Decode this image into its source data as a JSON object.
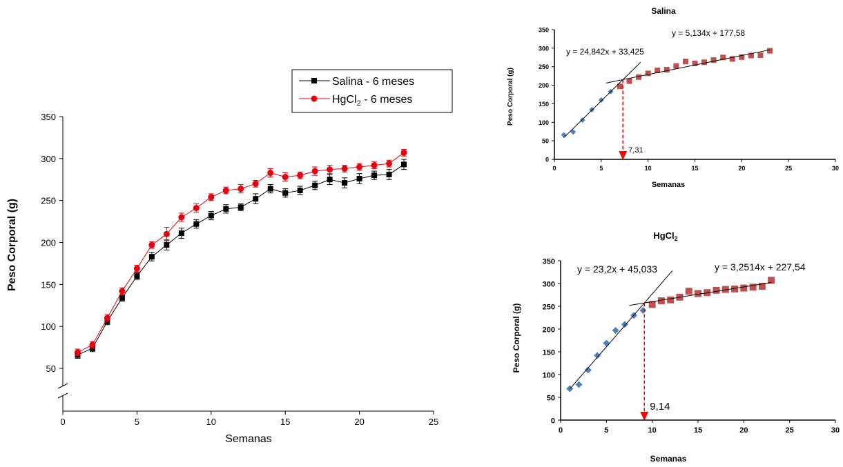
{
  "chart_data": [
    {
      "type": "line",
      "ylabel": "Peso Corporal (g)",
      "xlabel": "Semanas",
      "xlim": [
        0,
        25
      ],
      "ylim": [
        50,
        350
      ],
      "x_ticks": [
        0,
        5,
        10,
        15,
        20,
        25
      ],
      "y_ticks": [
        50,
        100,
        150,
        200,
        250,
        300,
        350
      ],
      "legend": {
        "placement": "top-right"
      },
      "axis_break": true,
      "x": [
        1,
        2,
        3,
        4,
        5,
        6,
        7,
        8,
        9,
        10,
        11,
        12,
        13,
        14,
        15,
        16,
        17,
        18,
        19,
        20,
        21,
        22,
        23
      ],
      "series": [
        {
          "name": "Salina - 6 meses",
          "legend_parts": [
            "Salina - 6 meses"
          ],
          "color": "#000000",
          "marker": "square",
          "values": [
            66,
            74,
            106,
            134,
            160,
            183,
            197,
            211,
            222,
            232,
            240,
            242,
            252,
            264,
            259,
            262,
            268,
            275,
            271,
            276,
            280,
            281,
            293
          ],
          "error": [
            4,
            4,
            4,
            4,
            4,
            5,
            6,
            6,
            5,
            5,
            5,
            4,
            6,
            5,
            5,
            5,
            5,
            6,
            6,
            6,
            5,
            6,
            6
          ]
        },
        {
          "name": "HgCl2 - 6 meses",
          "legend_parts": [
            "HgCl",
            "2",
            " - 6 meses"
          ],
          "color": "#e8000b",
          "marker": "circle",
          "values": [
            69,
            78,
            110,
            142,
            169,
            197,
            210,
            230,
            241,
            254,
            262,
            264,
            270,
            283,
            278,
            280,
            285,
            287,
            288,
            290,
            292,
            294,
            307
          ],
          "error": [
            4,
            4,
            4,
            4,
            4,
            4,
            8,
            5,
            5,
            4,
            4,
            5,
            4,
            5,
            5,
            4,
            5,
            5,
            4,
            4,
            4,
            4,
            4
          ]
        }
      ]
    },
    {
      "type": "scatter",
      "title": "Salina",
      "xlabel": "Semanas",
      "ylabel": "Peso Corporal (g)",
      "xlim": [
        0,
        30
      ],
      "ylim": [
        0,
        350
      ],
      "x_ticks": [
        0,
        5,
        10,
        15,
        20,
        25,
        30
      ],
      "y_ticks": [
        0,
        50,
        100,
        150,
        200,
        250,
        300,
        350
      ],
      "series": [
        {
          "marker": "diamond",
          "color": "#4f81bd",
          "x": [
            1,
            2,
            3,
            4,
            5,
            6
          ],
          "values": [
            66,
            74,
            106,
            134,
            160,
            183
          ]
        },
        {
          "marker": "square",
          "color": "#c0504d",
          "x": [
            7,
            8,
            9,
            10,
            11,
            12,
            13,
            14,
            15,
            16,
            17,
            18,
            19,
            20,
            21,
            22,
            23
          ],
          "values": [
            197,
            211,
            222,
            232,
            240,
            242,
            252,
            264,
            259,
            262,
            268,
            275,
            271,
            276,
            280,
            281,
            293
          ]
        }
      ],
      "trendlines": [
        {
          "equation": "y = 24,842x + 33,425",
          "slope": 24.842,
          "intercept": 33.425,
          "x_range": [
            1,
            9.2
          ]
        },
        {
          "equation": "y = 5,134x + 177,58",
          "slope": 5.134,
          "intercept": 177.58,
          "x_range": [
            5.5,
            23
          ]
        }
      ],
      "annotation": {
        "label": "7,31",
        "x": 7.31
      }
    },
    {
      "type": "scatter",
      "title_parts": [
        "HgCl",
        "2"
      ],
      "xlabel": "Semanas",
      "ylabel": "Peso Corporal (g)",
      "xlim": [
        0,
        30
      ],
      "ylim": [
        0,
        350
      ],
      "x_ticks": [
        0,
        5,
        10,
        15,
        20,
        25,
        30
      ],
      "y_ticks": [
        0,
        50,
        100,
        150,
        200,
        250,
        300,
        350
      ],
      "series": [
        {
          "marker": "diamond",
          "color": "#4f81bd",
          "x": [
            1,
            2,
            3,
            4,
            5,
            6,
            7,
            8,
            9
          ],
          "values": [
            69,
            78,
            110,
            142,
            169,
            197,
            210,
            230,
            241
          ]
        },
        {
          "marker": "square",
          "color": "#c0504d",
          "x": [
            10,
            11,
            12,
            13,
            14,
            15,
            16,
            17,
            18,
            19,
            20,
            21,
            22,
            23
          ],
          "values": [
            254,
            262,
            264,
            270,
            283,
            278,
            280,
            285,
            287,
            288,
            290,
            292,
            294,
            307
          ]
        }
      ],
      "trendlines": [
        {
          "equation": "y = 23,2x + 45,033",
          "slope": 23.2,
          "intercept": 45.033,
          "x_range": [
            1,
            12.2
          ]
        },
        {
          "equation": "y = 3,2514x + 227,54",
          "slope": 3.2514,
          "intercept": 227.54,
          "x_range": [
            7.5,
            23
          ]
        }
      ],
      "annotation": {
        "label": "9,14",
        "x": 9.14
      }
    }
  ]
}
